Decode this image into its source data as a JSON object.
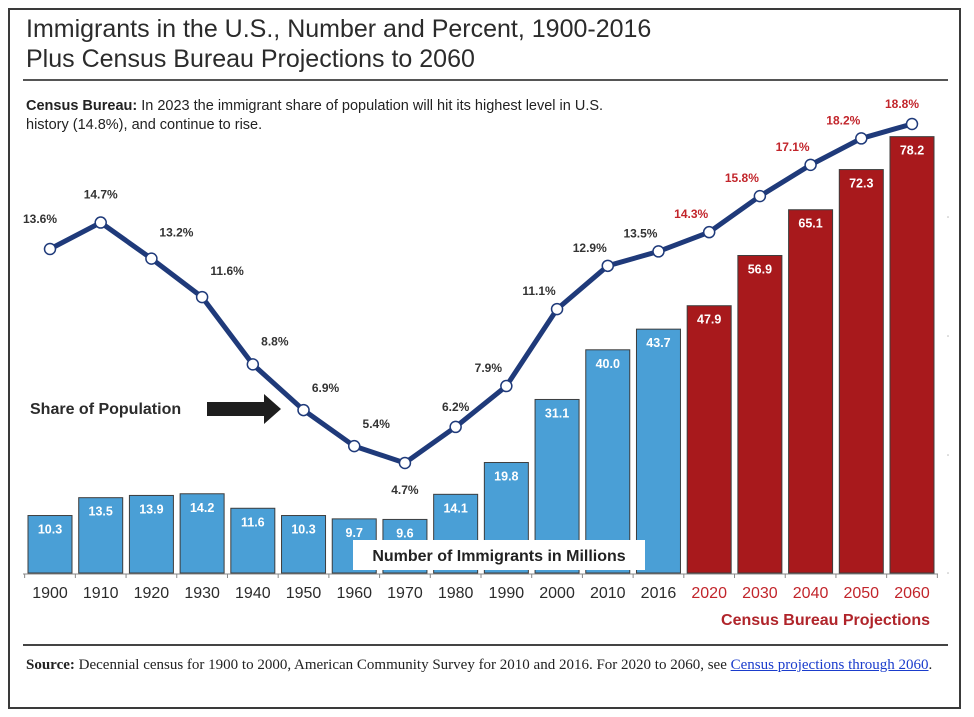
{
  "title_line1": "Immigrants in the U.S., Number and Percent, 1900-2016",
  "title_line2": "Plus Census Bureau Projections to 2060",
  "note_bold": "Census Bureau:",
  "note_text": " In 2023 the immigrant share of population will hit its highest level in U.S. history (14.8%), and continue to rise.",
  "source_bold": "Source:",
  "source_text": " Decennial census for 1900 to 2000, American Community Survey for 2010 and 2016. For 2020 to 2060, see ",
  "source_link": "Census projections through 2060",
  "source_end": ".",
  "projections_label": "Census Bureau Projections",
  "colors": {
    "historic_bar": "#4a9fd6",
    "projection_bar": "#a8191c",
    "line": "#1f3a7a",
    "historic_text": "#333333",
    "projection_text": "#c2252b"
  },
  "chart_data": {
    "type": "bar",
    "title": "Immigrants in the U.S., Number and Percent, 1900-2016 Plus Census Bureau Projections to 2060",
    "xlabel": "",
    "ylabel": "",
    "categories": [
      "1900",
      "1910",
      "1920",
      "1930",
      "1940",
      "1950",
      "1960",
      "1970",
      "1980",
      "1990",
      "2000",
      "2010",
      "2016",
      "2020",
      "2030",
      "2040",
      "2050",
      "2060"
    ],
    "projected": [
      false,
      false,
      false,
      false,
      false,
      false,
      false,
      false,
      false,
      false,
      false,
      false,
      false,
      true,
      true,
      true,
      true,
      true
    ],
    "series": [
      {
        "name": "Number of Immigrants in Millions",
        "type": "bar",
        "values": [
          10.3,
          13.5,
          13.9,
          14.2,
          11.6,
          10.3,
          9.7,
          9.6,
          14.1,
          19.8,
          31.1,
          40.0,
          43.7,
          47.9,
          56.9,
          65.1,
          72.3,
          78.2
        ],
        "labels": [
          "10.3",
          "13.5",
          "13.9",
          "14.2",
          "11.6",
          "10.3",
          "9.7",
          "9.6",
          "14.1",
          "19.8",
          "31.1",
          "40.0",
          "43.7",
          "47.9",
          "56.9",
          "65.1",
          "72.3",
          "78.2"
        ],
        "ylim": [
          0,
          80
        ]
      },
      {
        "name": "Share of Population",
        "type": "line",
        "values": [
          13.6,
          14.7,
          13.2,
          11.6,
          8.8,
          6.9,
          5.4,
          4.7,
          6.2,
          7.9,
          11.1,
          12.9,
          13.5,
          14.3,
          15.8,
          17.1,
          18.2,
          18.8
        ],
        "labels": [
          "13.6%",
          "14.7%",
          "13.2%",
          "11.6%",
          "8.8%",
          "6.9%",
          "5.4%",
          "4.7%",
          "6.2%",
          "7.9%",
          "11.1%",
          "12.9%",
          "13.5%",
          "14.3%",
          "15.8%",
          "17.1%",
          "18.2%",
          "18.8%"
        ]
      }
    ],
    "annotations": [
      "Share of Population",
      "Number of Immigrants in Millions",
      "Census Bureau Projections"
    ],
    "grid": false,
    "legend": "none"
  }
}
